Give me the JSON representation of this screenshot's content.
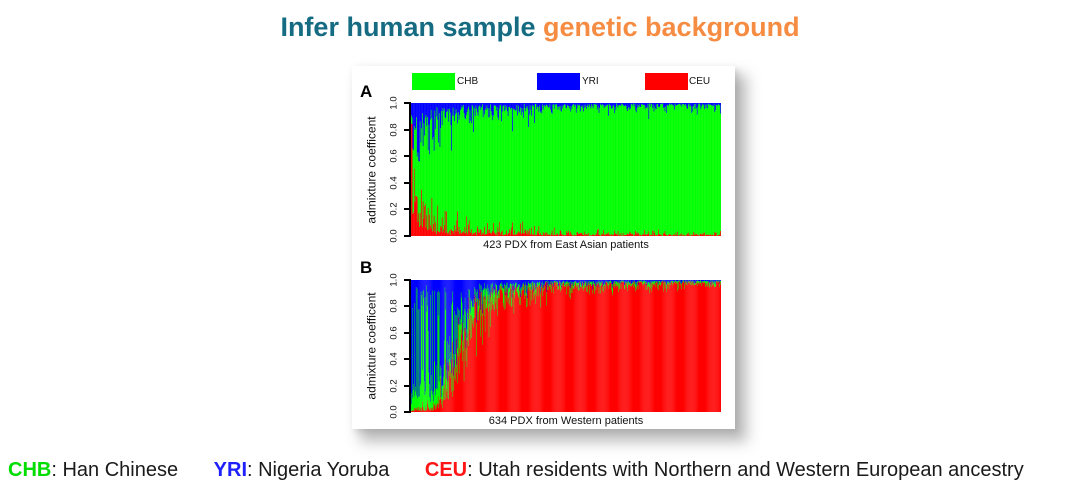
{
  "title": {
    "part1": "Infer human sample ",
    "part2": "genetic background",
    "color_primary": "#156b82",
    "color_accent": "#f68b42"
  },
  "figure": {
    "legend": [
      {
        "label": "CHB",
        "color": "#00ff00"
      },
      {
        "label": "YRI",
        "color": "#0000ff"
      },
      {
        "label": "CEU",
        "color": "#ff0000"
      }
    ],
    "y_ticks": [
      "0.0",
      "0.2",
      "0.4",
      "0.6",
      "0.8",
      "1.0"
    ]
  },
  "chart_data": {
    "type": "bar",
    "subtype": "stacked-admixture-barplot",
    "ylabel": "admixture coefficent",
    "ylim": [
      0,
      1
    ],
    "y_ticks": [
      0.0,
      0.2,
      0.4,
      0.6,
      0.8,
      1.0
    ],
    "grid": false,
    "legend_position": "top",
    "stack_order_bottom_to_top": [
      "CEU",
      "CHB",
      "YRI"
    ],
    "colors": {
      "CHB": "#00ff00",
      "YRI": "#0000ff",
      "CEU": "#ff0000"
    },
    "series_definitions": [
      {
        "name": "CHB",
        "description": "Han Chinese"
      },
      {
        "name": "YRI",
        "description": "Nigeria Yoruba"
      },
      {
        "name": "CEU",
        "description": "Utah residents with Northern and Western European ancestry"
      }
    ],
    "panels": [
      {
        "label": "A",
        "title": "423 PDX from East Asian patients",
        "n_samples": 423,
        "noise": 1.0,
        "seed": 1234,
        "stripe_swap": null,
        "profile_keypoints": [
          {
            "t": 0.0,
            "CEU": 0.96,
            "CHB": 0.02,
            "YRI": 0.02
          },
          {
            "t": 0.003,
            "CEU": 0.35,
            "CHB": 0.22,
            "YRI": 0.43
          },
          {
            "t": 0.01,
            "CEU": 0.24,
            "CHB": 0.4,
            "YRI": 0.36
          },
          {
            "t": 0.03,
            "CEU": 0.14,
            "CHB": 0.6,
            "YRI": 0.26
          },
          {
            "t": 0.06,
            "CEU": 0.09,
            "CHB": 0.74,
            "YRI": 0.17
          },
          {
            "t": 0.12,
            "CEU": 0.05,
            "CHB": 0.85,
            "YRI": 0.1
          },
          {
            "t": 0.25,
            "CEU": 0.025,
            "CHB": 0.925,
            "YRI": 0.05
          },
          {
            "t": 0.5,
            "CEU": 0.013,
            "CHB": 0.962,
            "YRI": 0.025
          },
          {
            "t": 1.0,
            "CEU": 0.008,
            "CHB": 0.977,
            "YRI": 0.015
          }
        ]
      },
      {
        "label": "B",
        "title": "634 PDX from Western patients",
        "n_samples": 634,
        "noise": 0.9,
        "seed": 777,
        "stripe_swap": {
          "zone": [
            0,
            0.28
          ],
          "prob": 0.5
        },
        "profile_keypoints": [
          {
            "t": 0.0,
            "CEU": 0.01,
            "CHB": 0.12,
            "YRI": 0.87
          },
          {
            "t": 0.08,
            "CEU": 0.04,
            "CHB": 0.14,
            "YRI": 0.82
          },
          {
            "t": 0.12,
            "CEU": 0.22,
            "CHB": 0.16,
            "YRI": 0.62
          },
          {
            "t": 0.16,
            "CEU": 0.5,
            "CHB": 0.2,
            "YRI": 0.3
          },
          {
            "t": 0.2,
            "CEU": 0.7,
            "CHB": 0.15,
            "YRI": 0.15
          },
          {
            "t": 0.25,
            "CEU": 0.84,
            "CHB": 0.09,
            "YRI": 0.07
          },
          {
            "t": 0.32,
            "CEU": 0.91,
            "CHB": 0.05,
            "YRI": 0.04
          },
          {
            "t": 0.45,
            "CEU": 0.955,
            "CHB": 0.025,
            "YRI": 0.02
          },
          {
            "t": 0.7,
            "CEU": 0.972,
            "CHB": 0.016,
            "YRI": 0.012
          },
          {
            "t": 1.0,
            "CEU": 0.98,
            "CHB": 0.012,
            "YRI": 0.008
          }
        ]
      }
    ]
  },
  "footer": {
    "entries": [
      {
        "abbr": "CHB",
        "color": "#00dd00",
        "desc": ": Han Chinese"
      },
      {
        "abbr": "YRI",
        "color": "#2020ff",
        "desc": ": Nigeria Yoruba"
      },
      {
        "abbr": "CEU",
        "color": "#ff1515",
        "desc": ": Utah residents with Northern and Western European ancestry"
      }
    ]
  }
}
